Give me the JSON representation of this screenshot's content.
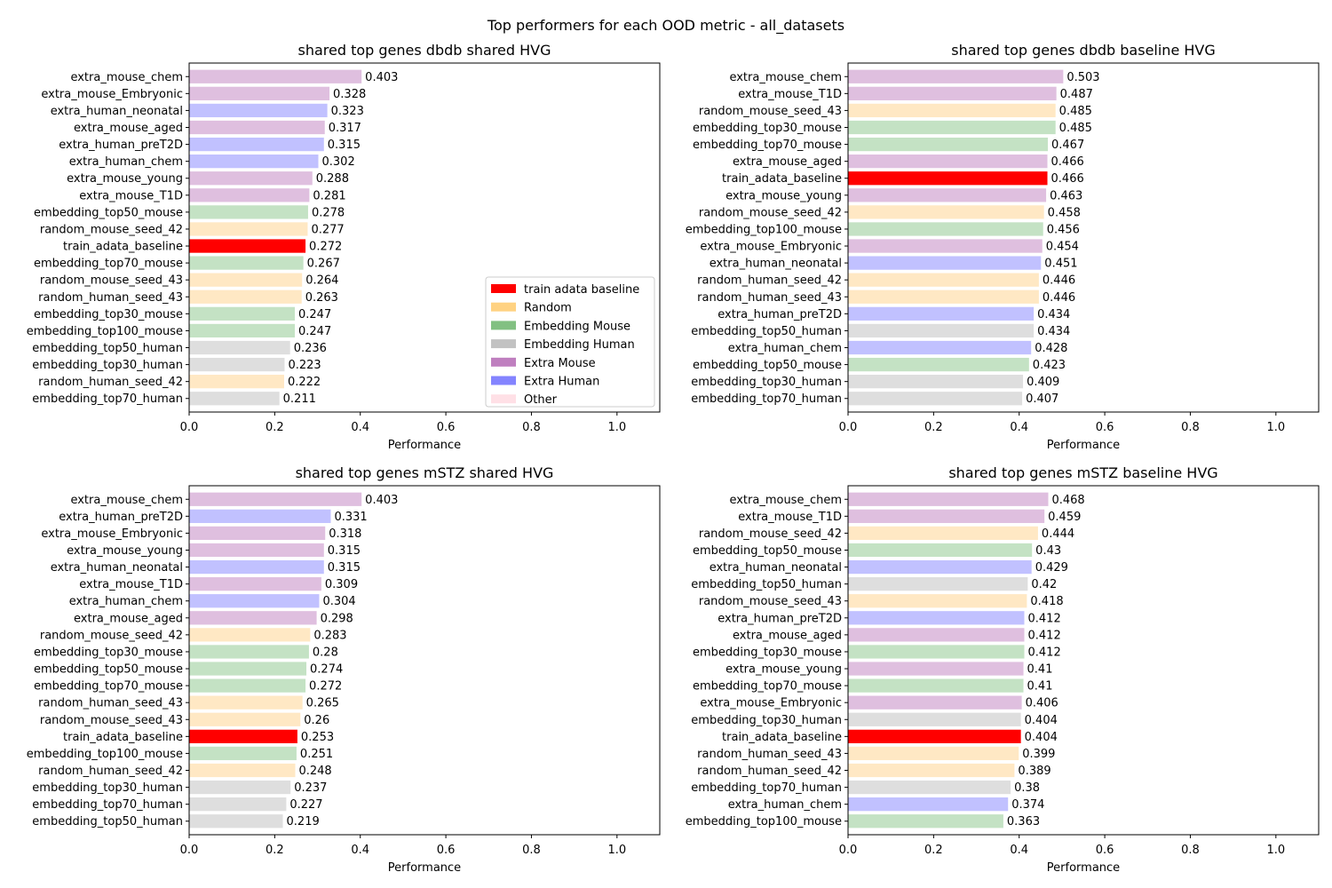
{
  "figure_title": "Top performers for each OOD metric - all_datasets",
  "colors": {
    "train adata baseline": "#ff0000",
    "Random": "#ffe8c4",
    "Embedding Mouse": "#c4e2c4",
    "Embedding Human": "#dedede",
    "Extra Mouse": "#dfbfdf",
    "Extra Human": "#c1c1ff",
    "Other": "#ffe0e6"
  },
  "legend": {
    "placement": "lower-right of first panel",
    "entries": [
      {
        "label": "train adata baseline",
        "color": "#ff0000"
      },
      {
        "label": "Random",
        "color": "#ffd282"
      },
      {
        "label": "Embedding Mouse",
        "color": "#82c082"
      },
      {
        "label": "Embedding Human",
        "color": "#c2c2c2"
      },
      {
        "label": "Extra Mouse",
        "color": "#bf7fbf"
      },
      {
        "label": "Extra Human",
        "color": "#8484ff"
      },
      {
        "label": "Other",
        "color": "#ffe0e6"
      }
    ]
  },
  "chart_data": [
    {
      "type": "bar",
      "orientation": "horizontal",
      "title": "shared top genes dbdb shared HVG",
      "xlabel": "Performance",
      "xlim": [
        0,
        1.1
      ],
      "xticks": [
        "0.0",
        "0.2",
        "0.4",
        "0.6",
        "0.8",
        "1.0"
      ],
      "categories": [
        "extra_mouse_chem",
        "extra_mouse_Embryonic",
        "extra_human_neonatal",
        "extra_mouse_aged",
        "extra_human_preT2D",
        "extra_human_chem",
        "extra_mouse_young",
        "extra_mouse_T1D",
        "embedding_top50_mouse",
        "random_mouse_seed_42",
        "train_adata_baseline",
        "embedding_top70_mouse",
        "random_mouse_seed_43",
        "random_human_seed_43",
        "embedding_top30_mouse",
        "embedding_top100_mouse",
        "embedding_top50_human",
        "embedding_top30_human",
        "random_human_seed_42",
        "embedding_top70_human"
      ],
      "values": [
        0.403,
        0.328,
        0.323,
        0.317,
        0.315,
        0.302,
        0.288,
        0.281,
        0.278,
        0.277,
        0.272,
        0.267,
        0.264,
        0.263,
        0.247,
        0.247,
        0.236,
        0.223,
        0.222,
        0.211
      ],
      "value_labels": [
        "0.403",
        "0.328",
        "0.323",
        "0.317",
        "0.315",
        "0.302",
        "0.288",
        "0.281",
        "0.278",
        "0.277",
        "0.272",
        "0.267",
        "0.264",
        "0.263",
        "0.247",
        "0.247",
        "0.236",
        "0.223",
        "0.222",
        "0.211"
      ],
      "groups": [
        "Extra Mouse",
        "Extra Mouse",
        "Extra Human",
        "Extra Mouse",
        "Extra Human",
        "Extra Human",
        "Extra Mouse",
        "Extra Mouse",
        "Embedding Mouse",
        "Random",
        "train adata baseline",
        "Embedding Mouse",
        "Random",
        "Random",
        "Embedding Mouse",
        "Embedding Mouse",
        "Embedding Human",
        "Embedding Human",
        "Random",
        "Embedding Human"
      ],
      "show_legend": true
    },
    {
      "type": "bar",
      "orientation": "horizontal",
      "title": "shared top genes dbdb baseline HVG",
      "xlabel": "Performance",
      "xlim": [
        0,
        1.1
      ],
      "xticks": [
        "0.0",
        "0.2",
        "0.4",
        "0.6",
        "0.8",
        "1.0"
      ],
      "categories": [
        "extra_mouse_chem",
        "extra_mouse_T1D",
        "random_mouse_seed_43",
        "embedding_top30_mouse",
        "embedding_top70_mouse",
        "extra_mouse_aged",
        "train_adata_baseline",
        "extra_mouse_young",
        "random_mouse_seed_42",
        "embedding_top100_mouse",
        "extra_mouse_Embryonic",
        "extra_human_neonatal",
        "random_human_seed_42",
        "random_human_seed_43",
        "extra_human_preT2D",
        "embedding_top50_human",
        "extra_human_chem",
        "embedding_top50_mouse",
        "embedding_top30_human",
        "embedding_top70_human"
      ],
      "values": [
        0.503,
        0.487,
        0.485,
        0.485,
        0.467,
        0.466,
        0.466,
        0.463,
        0.458,
        0.456,
        0.454,
        0.451,
        0.446,
        0.446,
        0.434,
        0.434,
        0.428,
        0.423,
        0.409,
        0.407
      ],
      "value_labels": [
        "0.503",
        "0.487",
        "0.485",
        "0.485",
        "0.467",
        "0.466",
        "0.466",
        "0.463",
        "0.458",
        "0.456",
        "0.454",
        "0.451",
        "0.446",
        "0.446",
        "0.434",
        "0.434",
        "0.428",
        "0.423",
        "0.409",
        "0.407"
      ],
      "groups": [
        "Extra Mouse",
        "Extra Mouse",
        "Random",
        "Embedding Mouse",
        "Embedding Mouse",
        "Extra Mouse",
        "train adata baseline",
        "Extra Mouse",
        "Random",
        "Embedding Mouse",
        "Extra Mouse",
        "Extra Human",
        "Random",
        "Random",
        "Extra Human",
        "Embedding Human",
        "Extra Human",
        "Embedding Mouse",
        "Embedding Human",
        "Embedding Human"
      ],
      "show_legend": false
    },
    {
      "type": "bar",
      "orientation": "horizontal",
      "title": "shared top genes mSTZ shared HVG",
      "xlabel": "Performance",
      "xlim": [
        0,
        1.1
      ],
      "xticks": [
        "0.0",
        "0.2",
        "0.4",
        "0.6",
        "0.8",
        "1.0"
      ],
      "categories": [
        "extra_mouse_chem",
        "extra_human_preT2D",
        "extra_mouse_Embryonic",
        "extra_mouse_young",
        "extra_human_neonatal",
        "extra_mouse_T1D",
        "extra_human_chem",
        "extra_mouse_aged",
        "random_mouse_seed_42",
        "embedding_top30_mouse",
        "embedding_top50_mouse",
        "embedding_top70_mouse",
        "random_human_seed_43",
        "random_mouse_seed_43",
        "train_adata_baseline",
        "embedding_top100_mouse",
        "random_human_seed_42",
        "embedding_top30_human",
        "embedding_top70_human",
        "embedding_top50_human"
      ],
      "values": [
        0.403,
        0.331,
        0.318,
        0.315,
        0.315,
        0.309,
        0.304,
        0.298,
        0.283,
        0.28,
        0.274,
        0.272,
        0.265,
        0.26,
        0.253,
        0.251,
        0.248,
        0.237,
        0.227,
        0.219
      ],
      "value_labels": [
        "0.403",
        "0.331",
        "0.318",
        "0.315",
        "0.315",
        "0.309",
        "0.304",
        "0.298",
        "0.283",
        "0.28",
        "0.274",
        "0.272",
        "0.265",
        "0.26",
        "0.253",
        "0.251",
        "0.248",
        "0.237",
        "0.227",
        "0.219"
      ],
      "groups": [
        "Extra Mouse",
        "Extra Human",
        "Extra Mouse",
        "Extra Mouse",
        "Extra Human",
        "Extra Mouse",
        "Extra Human",
        "Extra Mouse",
        "Random",
        "Embedding Mouse",
        "Embedding Mouse",
        "Embedding Mouse",
        "Random",
        "Random",
        "train adata baseline",
        "Embedding Mouse",
        "Random",
        "Embedding Human",
        "Embedding Human",
        "Embedding Human"
      ],
      "show_legend": false
    },
    {
      "type": "bar",
      "orientation": "horizontal",
      "title": "shared top genes mSTZ baseline HVG",
      "xlabel": "Performance",
      "xlim": [
        0,
        1.1
      ],
      "xticks": [
        "0.0",
        "0.2",
        "0.4",
        "0.6",
        "0.8",
        "1.0"
      ],
      "categories": [
        "extra_mouse_chem",
        "extra_mouse_T1D",
        "random_mouse_seed_42",
        "embedding_top50_mouse",
        "extra_human_neonatal",
        "embedding_top50_human",
        "random_mouse_seed_43",
        "extra_human_preT2D",
        "extra_mouse_aged",
        "embedding_top30_mouse",
        "extra_mouse_young",
        "embedding_top70_mouse",
        "extra_mouse_Embryonic",
        "embedding_top30_human",
        "train_adata_baseline",
        "random_human_seed_43",
        "random_human_seed_42",
        "embedding_top70_human",
        "extra_human_chem",
        "embedding_top100_mouse"
      ],
      "values": [
        0.468,
        0.459,
        0.444,
        0.43,
        0.429,
        0.42,
        0.418,
        0.412,
        0.412,
        0.412,
        0.41,
        0.41,
        0.406,
        0.404,
        0.404,
        0.399,
        0.389,
        0.38,
        0.374,
        0.363
      ],
      "value_labels": [
        "0.468",
        "0.459",
        "0.444",
        "0.43",
        "0.429",
        "0.42",
        "0.418",
        "0.412",
        "0.412",
        "0.412",
        "0.41",
        "0.41",
        "0.406",
        "0.404",
        "0.404",
        "0.399",
        "0.389",
        "0.38",
        "0.374",
        "0.363"
      ],
      "groups": [
        "Extra Mouse",
        "Extra Mouse",
        "Random",
        "Embedding Mouse",
        "Extra Human",
        "Embedding Human",
        "Random",
        "Extra Human",
        "Extra Mouse",
        "Embedding Mouse",
        "Extra Mouse",
        "Embedding Mouse",
        "Extra Mouse",
        "Embedding Human",
        "train adata baseline",
        "Random",
        "Random",
        "Embedding Human",
        "Extra Human",
        "Embedding Mouse"
      ],
      "show_legend": false
    }
  ]
}
